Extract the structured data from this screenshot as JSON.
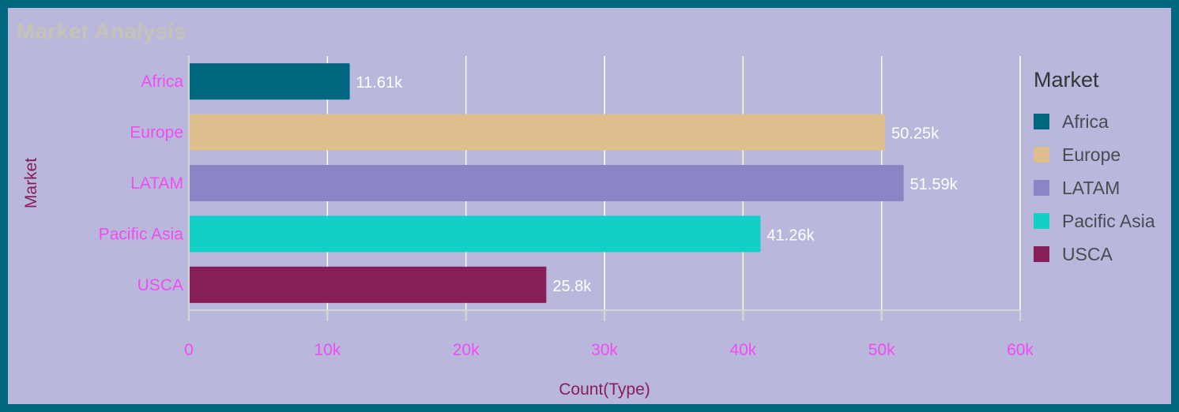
{
  "title": "Market Analysis",
  "legend": {
    "title": "Market"
  },
  "chart_data": {
    "type": "bar",
    "orientation": "horizontal",
    "title": "Market Analysis",
    "xlabel": "Count(Type)",
    "ylabel": "Market",
    "categories": [
      "Africa",
      "Europe",
      "LATAM",
      "Pacific Asia",
      "USCA"
    ],
    "values": [
      11610,
      50250,
      51590,
      41260,
      25800
    ],
    "value_labels": [
      "11.61k",
      "50.25k",
      "51.59k",
      "41.26k",
      "25.8k"
    ],
    "colors": [
      "#006680",
      "#dfbe8e",
      "#8a86c6",
      "#11d0c8",
      "#871e5a"
    ],
    "xlim": [
      0,
      60000
    ],
    "xticks": [
      0,
      10000,
      20000,
      30000,
      40000,
      50000,
      60000
    ],
    "xtick_labels": [
      "0",
      "10k",
      "20k",
      "30k",
      "40k",
      "50k",
      "60k"
    ],
    "grid": true,
    "legend_position": "right"
  }
}
